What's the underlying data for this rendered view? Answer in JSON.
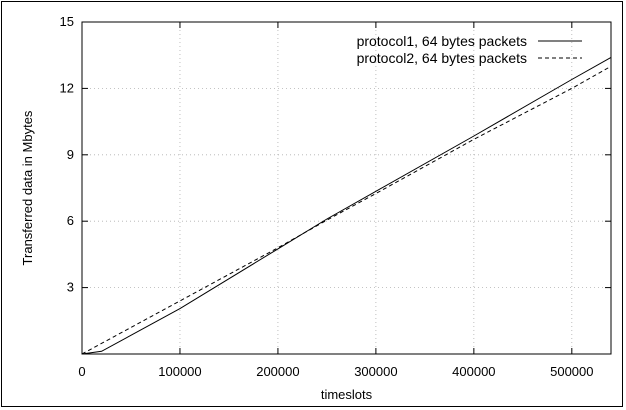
{
  "chart_data": {
    "type": "line",
    "title": "",
    "xlabel": "timeslots",
    "ylabel": "Transferred data in Mbytes",
    "xlim": [
      0,
      540000
    ],
    "ylim": [
      0,
      15
    ],
    "xticks": [
      0,
      100000,
      200000,
      300000,
      400000,
      500000
    ],
    "xtick_labels": [
      "0",
      "100000",
      "200000",
      "300000",
      "400000",
      "500000"
    ],
    "yticks": [
      3,
      6,
      9,
      12,
      15
    ],
    "ytick_labels": [
      "3",
      "6",
      "9",
      "12",
      "15"
    ],
    "grid": true,
    "legend_position": "top-right",
    "series": [
      {
        "name": "protocol1, 64 bytes packets",
        "line_style": "solid",
        "color": "#000000",
        "x": [
          0,
          20000,
          100000,
          200000,
          250000,
          300000,
          400000,
          500000,
          540000
        ],
        "y": [
          0.0,
          0.12,
          2.05,
          4.75,
          6.1,
          7.35,
          9.85,
          12.4,
          13.4
        ]
      },
      {
        "name": "protocol2, 64 bytes packets",
        "line_style": "dashed",
        "color": "#000000",
        "x": [
          0,
          100000,
          200000,
          250000,
          300000,
          400000,
          500000,
          540000
        ],
        "y": [
          0.0,
          2.4,
          4.8,
          6.05,
          7.25,
          9.7,
          12.0,
          13.0
        ]
      }
    ]
  }
}
